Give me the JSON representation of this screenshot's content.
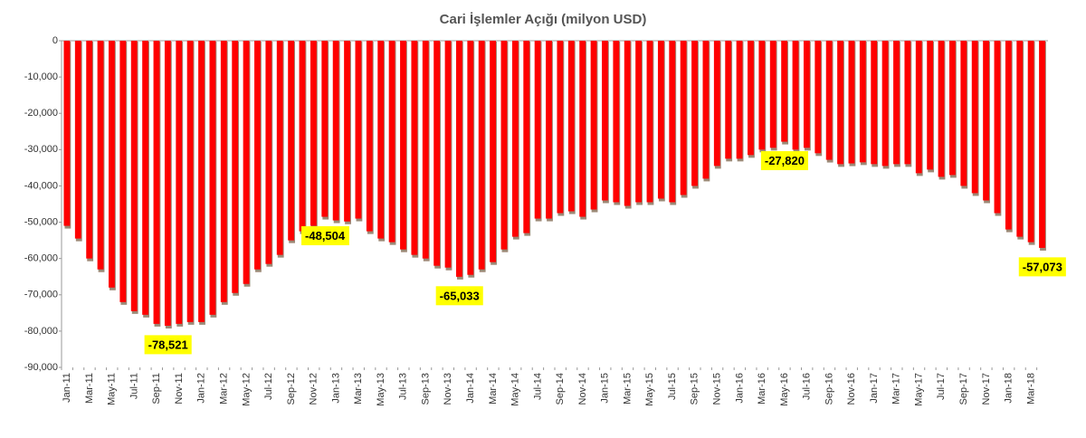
{
  "chart_data": {
    "type": "bar",
    "title": "Cari İşlemler Açığı (milyon USD)",
    "categories": [
      "Jan-11",
      null,
      "Mar-11",
      null,
      "May-11",
      null,
      "Jul-11",
      null,
      "Sep-11",
      null,
      "Nov-11",
      null,
      "Jan-12",
      null,
      "Mar-12",
      null,
      "May-12",
      null,
      "Jul-12",
      null,
      "Sep-12",
      null,
      "Nov-12",
      null,
      "Jan-13",
      null,
      "Mar-13",
      null,
      "May-13",
      null,
      "Jul-13",
      null,
      "Sep-13",
      null,
      "Nov-13",
      null,
      "Jan-14",
      null,
      "Mar-14",
      null,
      "May-14",
      null,
      "Jul-14",
      null,
      "Sep-14",
      null,
      "Nov-14",
      null,
      "Jan-15",
      null,
      "Mar-15",
      null,
      "May-15",
      null,
      "Jul-15",
      null,
      "Sep-15",
      null,
      "Nov-15",
      null,
      "Jan-16",
      null,
      "Mar-16",
      null,
      "May-16",
      null,
      "Jul-16",
      null,
      "Sep-16",
      null,
      "Nov-16",
      null,
      "Jan-17",
      null,
      "Mar-17",
      null,
      "May-17",
      null,
      "Jul-17",
      null,
      "Sep-17",
      null,
      "Nov-17",
      null,
      "Jan-18",
      null,
      "Mar-18",
      null
    ],
    "values": [
      -51000,
      -54500,
      -60000,
      -63000,
      -68000,
      -72000,
      -74500,
      -75500,
      -78000,
      -78521,
      -78000,
      -77500,
      -77500,
      -75500,
      -72000,
      -69500,
      -67000,
      -63000,
      -61500,
      -59000,
      -55000,
      -52500,
      -51000,
      -48504,
      -49500,
      -49800,
      -49000,
      -52500,
      -54500,
      -55500,
      -57500,
      -59000,
      -60000,
      -62000,
      -62500,
      -65033,
      -64500,
      -63000,
      -61000,
      -57500,
      -54000,
      -53000,
      -49000,
      -49000,
      -47500,
      -47000,
      -48500,
      -46500,
      -44000,
      -44500,
      -45500,
      -44500,
      -44500,
      -43500,
      -44500,
      -42500,
      -40000,
      -38000,
      -34500,
      -32500,
      -32500,
      -31500,
      -30000,
      -29500,
      -27820,
      -30000,
      -29500,
      -31000,
      -32800,
      -34000,
      -33800,
      -33500,
      -34000,
      -34500,
      -34000,
      -34000,
      -36500,
      -35500,
      -37500,
      -37000,
      -40000,
      -42000,
      -44000,
      -47500,
      -52000,
      -54000,
      -55500,
      -57073
    ],
    "value_labels": [
      null,
      null,
      null,
      null,
      null,
      null,
      null,
      null,
      null,
      "-78,521",
      null,
      null,
      null,
      null,
      null,
      null,
      null,
      null,
      null,
      null,
      null,
      null,
      null,
      "-48,504",
      null,
      null,
      null,
      null,
      null,
      null,
      null,
      null,
      null,
      null,
      null,
      "-65,033",
      null,
      null,
      null,
      null,
      null,
      null,
      null,
      null,
      null,
      null,
      null,
      null,
      null,
      null,
      null,
      null,
      null,
      null,
      null,
      null,
      null,
      null,
      null,
      null,
      null,
      null,
      null,
      null,
      "-27,820",
      null,
      null,
      null,
      null,
      null,
      null,
      null,
      null,
      null,
      null,
      null,
      null,
      null,
      null,
      null,
      null,
      null,
      null,
      null,
      null,
      null,
      null,
      "-57,073"
    ],
    "color": "#ff0000",
    "ylim": [
      -90000,
      0
    ],
    "yticks": [
      0,
      {
        "value": -10000,
        "label": "-10,000"
      },
      {
        "value": -20000,
        "label": "-20,000"
      },
      {
        "value": -30000,
        "label": "-30,000"
      },
      {
        "value": -40000,
        "label": "-40,000"
      },
      {
        "value": -50000,
        "label": "-50,000"
      },
      {
        "value": -60000,
        "label": "-60,000"
      },
      {
        "value": -70000,
        "label": "-70,000"
      },
      {
        "value": -80000,
        "label": "-80,000"
      },
      {
        "value": -90000,
        "label": "-90,000"
      }
    ]
  }
}
